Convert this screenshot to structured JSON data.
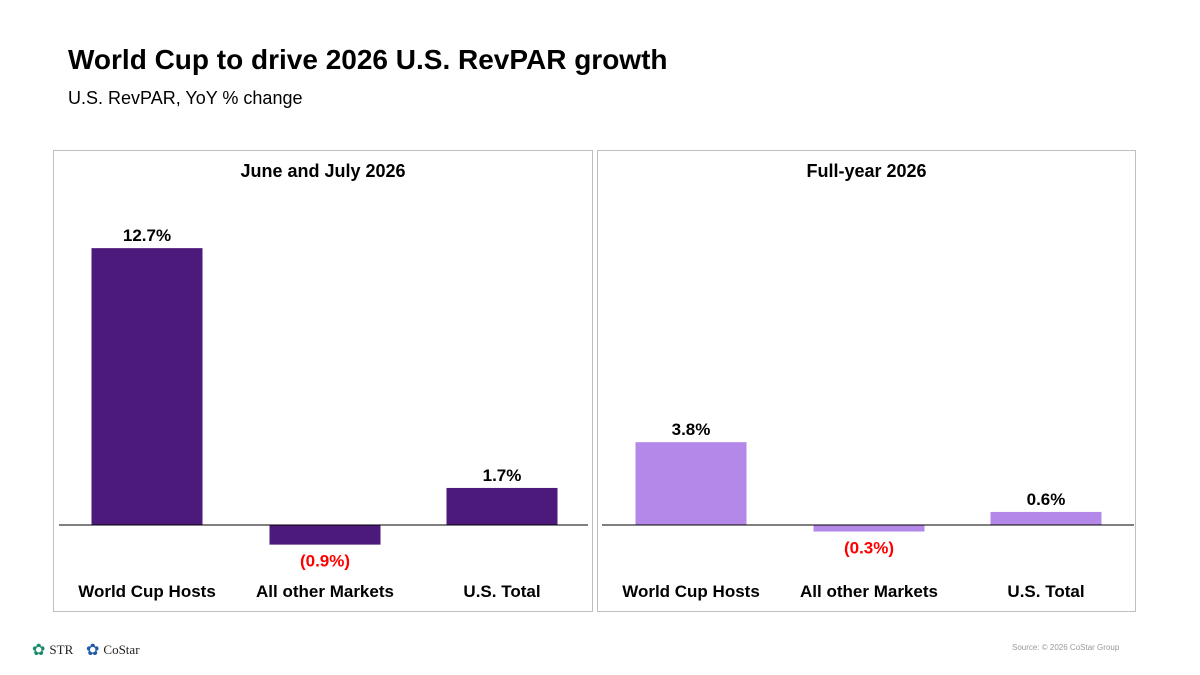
{
  "title": "World Cup to drive 2026 U.S. RevPAR growth",
  "subtitle": "U.S. RevPAR, YoY % change",
  "chart_data": [
    {
      "type": "bar",
      "title": "June and July 2026",
      "categories": [
        "World Cup Hosts",
        "All other Markets",
        "U.S. Total"
      ],
      "values": [
        12.7,
        -0.9,
        1.7
      ],
      "data_labels": [
        "12.7%",
        "(0.9%)",
        "1.7%"
      ],
      "color": "#4B1A7A",
      "negative_label_color": "#FF0000",
      "grid": false
    },
    {
      "type": "bar",
      "title": "Full-year 2026",
      "categories": [
        "World Cup Hosts",
        "All other Markets",
        "U.S. Total"
      ],
      "values": [
        3.8,
        -0.3,
        0.6
      ],
      "data_labels": [
        "3.8%",
        "(0.3%)",
        "0.6%"
      ],
      "color": "#B388E8",
      "negative_label_color": "#FF0000",
      "grid": false
    }
  ],
  "footer": {
    "logos": [
      "STR",
      "CoStar"
    ],
    "source": "Source: © 2026 CoStar Group"
  }
}
